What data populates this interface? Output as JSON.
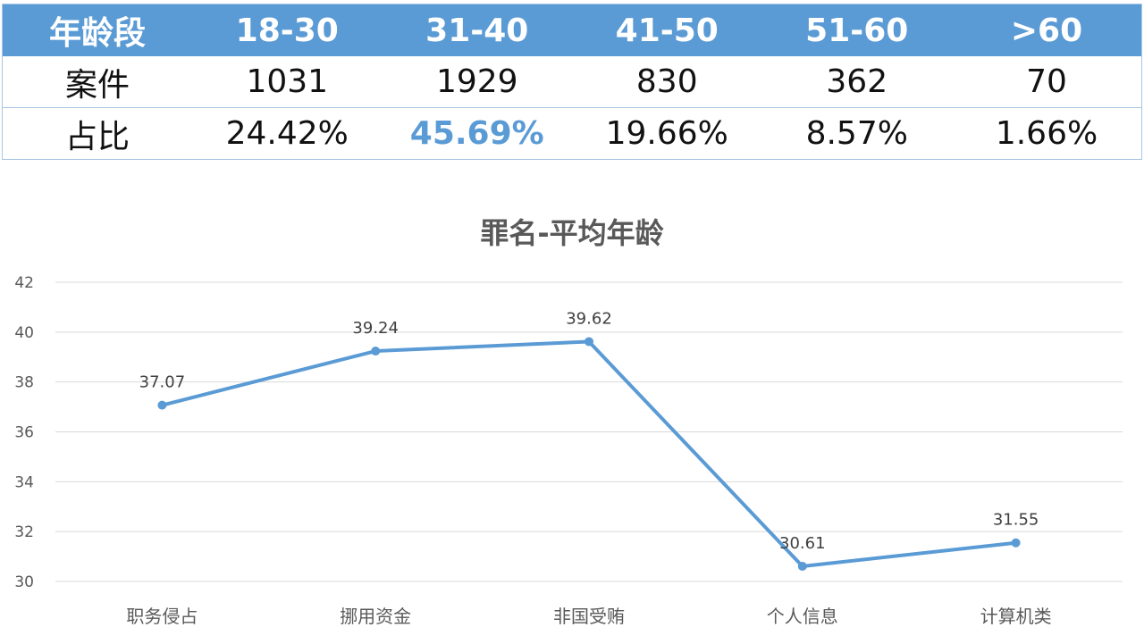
{
  "table": {
    "header": [
      "年龄段",
      "18-30",
      "31-40",
      "41-50",
      "51-60",
      ">60"
    ],
    "rows": [
      [
        "案件",
        "1031",
        "1929",
        "830",
        "362",
        "70"
      ],
      [
        "占比",
        "24.42%",
        "45.69%",
        "19.66%",
        "8.57%",
        "1.66%"
      ]
    ],
    "highlight_cell": "45.69%",
    "header_color": "#5b9bd5",
    "highlight_color": "#5b9bd5"
  },
  "chart_data": {
    "type": "line",
    "title": "罪名-平均年龄",
    "categories": [
      "职务侵占",
      "挪用资金",
      "非国受贿",
      "个人信息",
      "计算机类"
    ],
    "values": [
      37.07,
      39.24,
      39.62,
      30.61,
      31.55
    ],
    "data_labels": [
      "37.07",
      "39.24",
      "39.62",
      "30.61",
      "31.55"
    ],
    "ylim": [
      30,
      42
    ],
    "yticks": [
      "30",
      "32",
      "34",
      "36",
      "38",
      "40",
      "42"
    ],
    "grid": true,
    "legend": "none",
    "line_color": "#5b9bd5"
  }
}
